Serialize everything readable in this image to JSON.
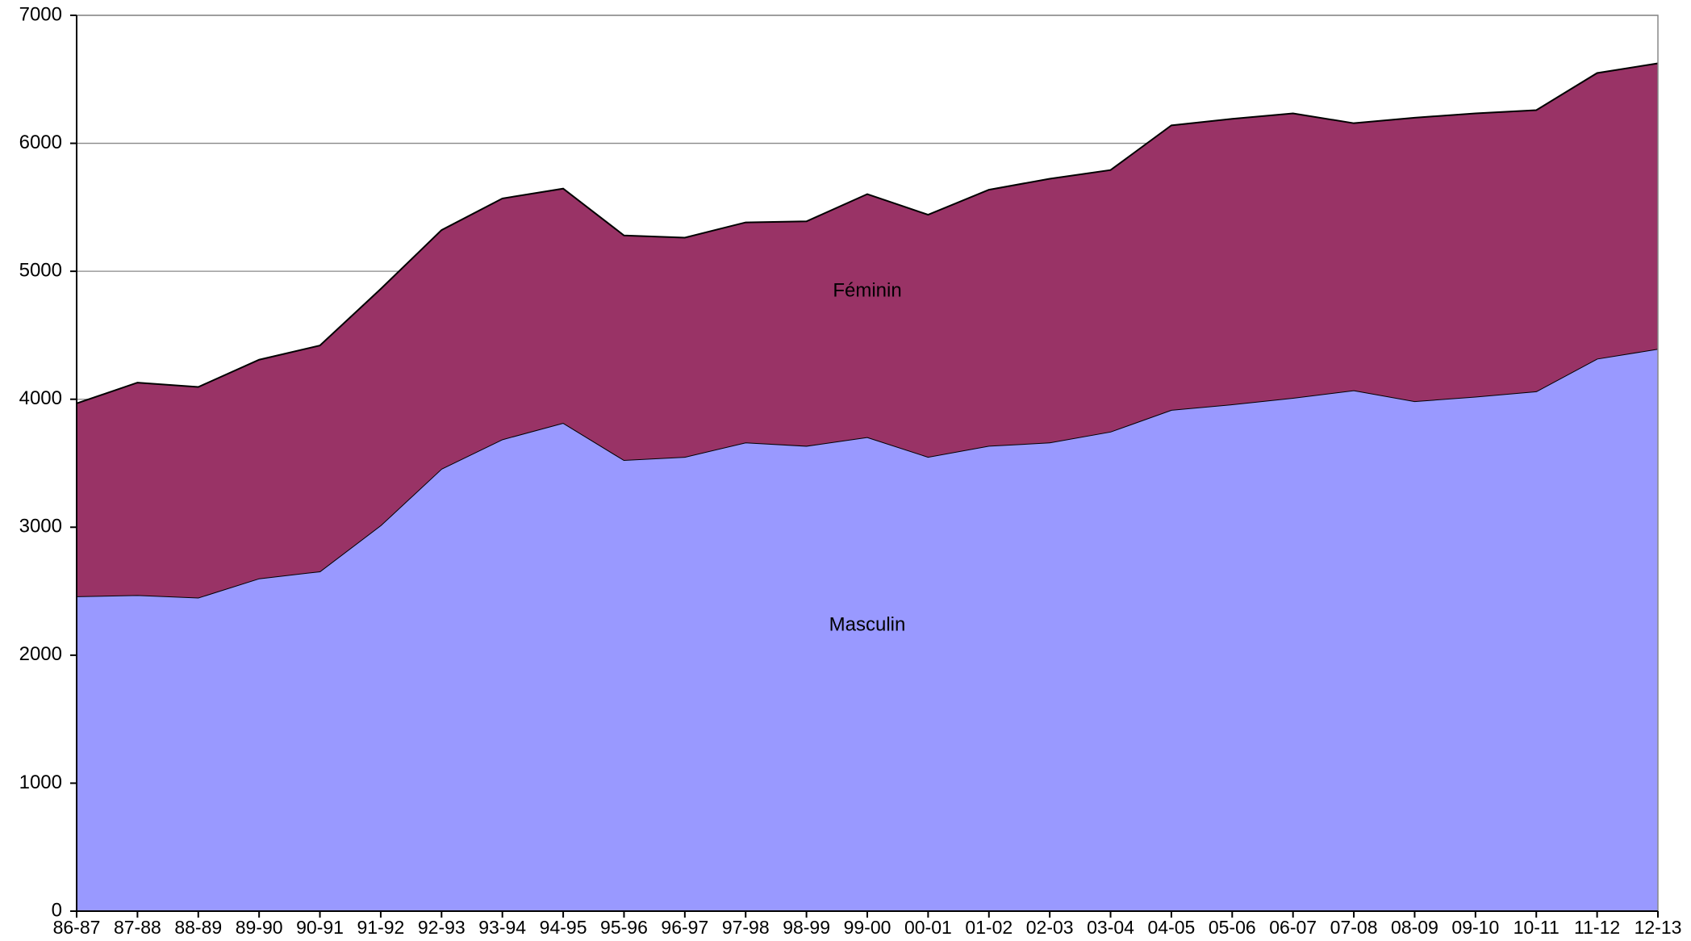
{
  "chart_data": {
    "type": "stacked_area",
    "categories": [
      "86-87",
      "87-88",
      "88-89",
      "89-90",
      "90-91",
      "91-92",
      "92-93",
      "93-94",
      "94-95",
      "95-96",
      "96-97",
      "97-98",
      "98-99",
      "99-00",
      "00-01",
      "01-02",
      "02-03",
      "03-04",
      "04-05",
      "05-06",
      "06-07",
      "07-08",
      "08-09",
      "09-10",
      "10-11",
      "11-12",
      "12-13"
    ],
    "series": [
      {
        "name": "Masculin",
        "color": "#9999ff",
        "values": [
          2460,
          2470,
          2450,
          2600,
          2655,
          3015,
          3457,
          3687,
          3815,
          3525,
          3550,
          3662,
          3636,
          3704,
          3550,
          3636,
          3662,
          3747,
          3917,
          3960,
          4011,
          4070,
          3985,
          4020,
          4062,
          4317,
          4394
        ]
      },
      {
        "name": "Féminin",
        "color": "#993366",
        "values": [
          1508,
          1660,
          1646,
          1709,
          1765,
          1847,
          1865,
          1882,
          1831,
          1755,
          1713,
          1720,
          1754,
          1899,
          1892,
          2001,
          2061,
          2044,
          2223,
          2231,
          2223,
          2087,
          2215,
          2214,
          2197,
          2232,
          2231
        ]
      }
    ],
    "ylim": [
      0,
      7000
    ],
    "yticks": [
      0,
      1000,
      2000,
      3000,
      4000,
      5000,
      6000,
      7000
    ],
    "grid": true
  }
}
